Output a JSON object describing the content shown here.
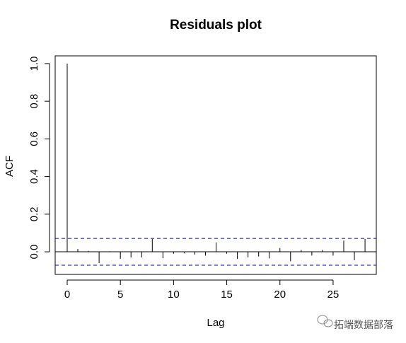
{
  "chart_data": {
    "type": "acf",
    "title": "Residuals plot",
    "xlabel": "Lag",
    "ylabel": "ACF",
    "x": [
      0,
      1,
      2,
      3,
      4,
      5,
      6,
      7,
      8,
      9,
      10,
      11,
      12,
      13,
      14,
      15,
      16,
      17,
      18,
      19,
      20,
      21,
      22,
      23,
      24,
      25,
      26,
      27,
      28
    ],
    "values": [
      1.0,
      0.015,
      0.005,
      -0.06,
      0.003,
      -0.037,
      -0.03,
      -0.03,
      0.068,
      -0.034,
      -0.01,
      -0.008,
      -0.015,
      -0.02,
      0.05,
      -0.01,
      -0.038,
      -0.03,
      -0.025,
      -0.035,
      0.02,
      -0.05,
      0.01,
      -0.02,
      0.01,
      -0.02,
      0.06,
      -0.045,
      0.068
    ],
    "color": "#000000",
    "ci": 0.071,
    "ci_color": "#0000cc",
    "xlim": [
      -1.13,
      29.06
    ],
    "ylim": [
      -0.12,
      1.041
    ],
    "xticks": [
      0,
      5,
      10,
      15,
      20,
      25
    ],
    "yticks": [
      {
        "value": 0,
        "label": "0.0"
      },
      0.2,
      0.4,
      0.6,
      0.8,
      {
        "value": 1,
        "label": "1.0"
      }
    ]
  },
  "watermark": "拓端数据部落"
}
